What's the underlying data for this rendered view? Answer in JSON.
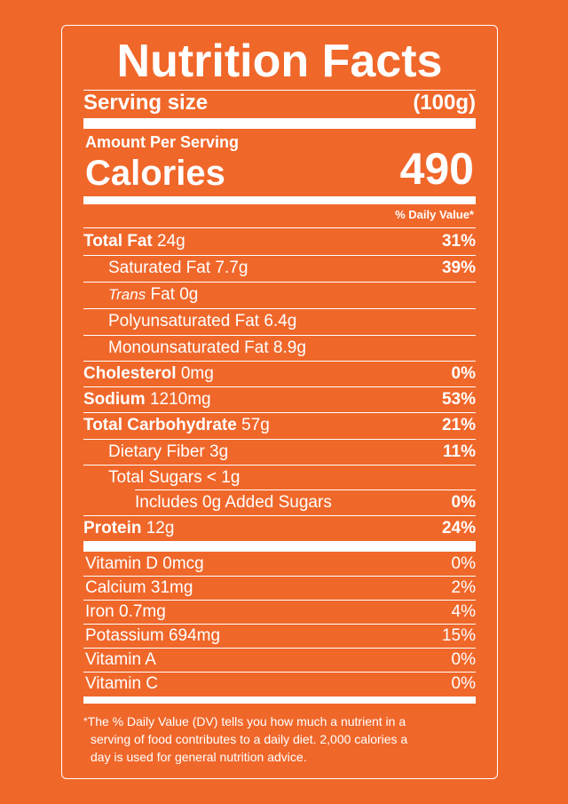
{
  "title": "Nutrition Facts",
  "serving": {
    "label": "Serving size",
    "value": "(100g)"
  },
  "amount_per_serving": "Amount Per Serving",
  "calories": {
    "label": "Calories",
    "value": "490"
  },
  "daily_value_header": "% Daily Value*",
  "nutrients": {
    "total_fat": {
      "name": "Total Fat",
      "amount": "24g",
      "dv": "31%"
    },
    "saturated_fat": {
      "name": "Saturated Fat",
      "amount": "7.7g",
      "dv": "39%"
    },
    "trans_fat": {
      "name": "Trans",
      "suffix": "Fat",
      "amount": "0g"
    },
    "polyunsaturated_fat": {
      "name": "Polyunsaturated Fat",
      "amount": "6.4g"
    },
    "monounsaturated_fat": {
      "name": "Monounsaturated Fat",
      "amount": "8.9g"
    },
    "cholesterol": {
      "name": "Cholesterol",
      "amount": "0mg",
      "dv": "0%"
    },
    "sodium": {
      "name": "Sodium",
      "amount": "1210mg",
      "dv": "53%"
    },
    "total_carbohydrate": {
      "name": "Total Carbohydrate",
      "amount": "57g",
      "dv": "21%"
    },
    "dietary_fiber": {
      "name": "Dietary Fiber",
      "amount": "3g",
      "dv": "11%"
    },
    "total_sugars": {
      "name": "Total Sugars",
      "amount": "< 1g"
    },
    "added_sugars": {
      "name": "Includes 0g Added Sugars",
      "dv": "0%"
    },
    "protein": {
      "name": "Protein",
      "amount": "12g",
      "dv": "24%"
    }
  },
  "vitamins": [
    {
      "name": "Vitamin D 0mcg",
      "dv": "0%"
    },
    {
      "name": "Calcium 31mg",
      "dv": "2%"
    },
    {
      "name": "Iron 0.7mg",
      "dv": "4%"
    },
    {
      "name": "Potassium 694mg",
      "dv": "15%"
    },
    {
      "name": "Vitamin A",
      "dv": "0%"
    },
    {
      "name": "Vitamin C",
      "dv": "0%"
    }
  ],
  "footnote": {
    "star": "*",
    "line1": "The % Daily Value (DV) tells you how much a nutrient in a",
    "line2": "serving of food contributes to a daily diet. 2,000 calories a",
    "line3": "day is used for general nutrition advice."
  },
  "colors": {
    "background": "#f0672a",
    "foreground": "#ffffff"
  }
}
